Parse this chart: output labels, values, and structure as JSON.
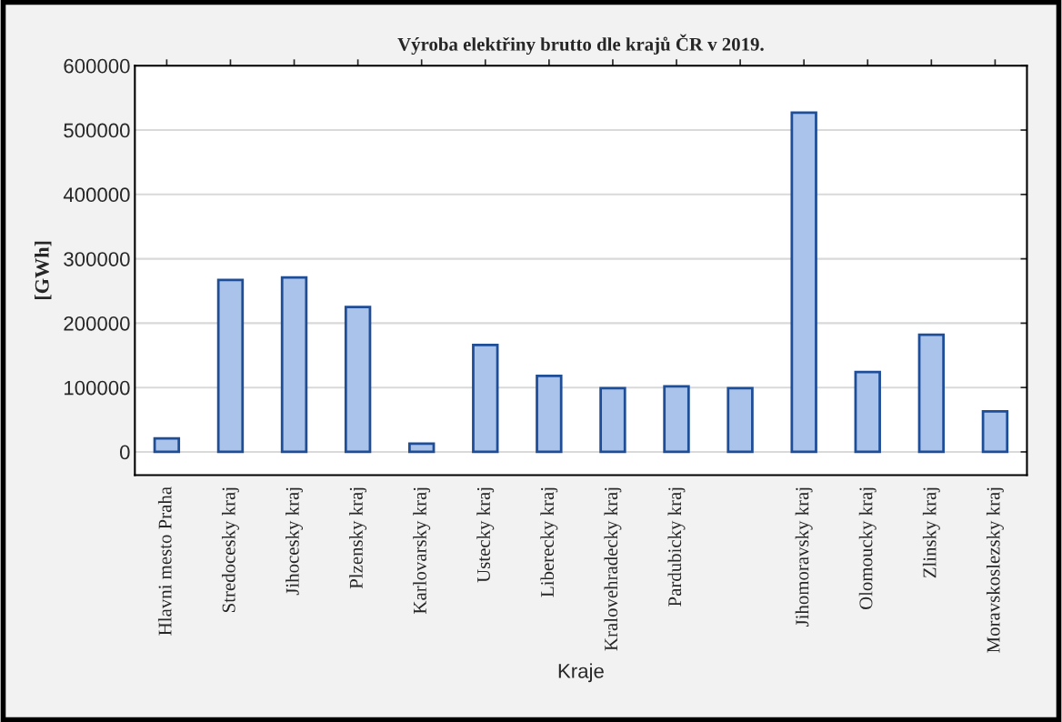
{
  "chart_data": {
    "type": "bar",
    "title": "Výroba elektřiny brutto dle krajů ČR v 2019.",
    "xlabel": "Kraje",
    "ylabel": "[GWh]",
    "categories": [
      "Hlavni mesto Praha",
      "Stredocesky kraj",
      "Jihocesky kraj",
      "Plzensky kraj",
      "Karlovarsky kraj",
      "Ustecky kraj",
      "Liberecky kraj",
      "Kralovehradecky kraj",
      "Pardubicky kraj",
      null,
      "Jihomoravsky kraj",
      "Olomoucky kraj",
      "Zlinsky kraj",
      "Moravskoslezsky kraj"
    ],
    "values": [
      21000,
      267000,
      271000,
      225000,
      13000,
      166000,
      118000,
      99000,
      102000,
      99000,
      527000,
      124000,
      182000,
      63000
    ],
    "color": "#a9c3ea",
    "ylim": [
      -36000,
      600000
    ],
    "yticks": [
      0,
      100000,
      200000,
      300000,
      400000,
      500000,
      600000
    ],
    "grid": "y"
  }
}
